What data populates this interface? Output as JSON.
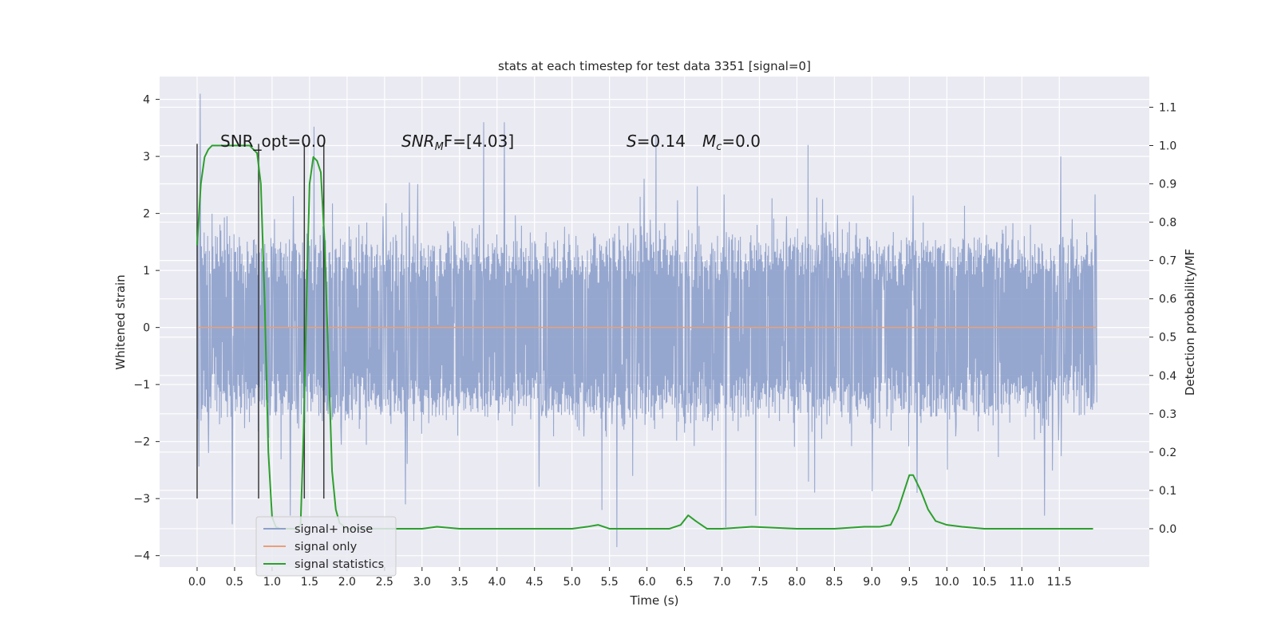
{
  "chart_data": {
    "type": "line",
    "title": "stats at each timestep for test data 3351 [signal=0]",
    "xlabel": "Time (s)",
    "ylabel": "Whitened strain",
    "y2label": "Detection probability/MF",
    "xlim": [
      -0.5,
      12.7
    ],
    "ylim": [
      -4.2,
      4.4
    ],
    "y2lim": [
      -0.1,
      1.18
    ],
    "x_ticks": [
      0.0,
      0.5,
      1.0,
      1.5,
      2.0,
      2.5,
      3.0,
      3.5,
      4.0,
      4.5,
      5.0,
      5.5,
      6.0,
      6.5,
      7.0,
      7.5,
      8.0,
      8.5,
      9.0,
      9.5,
      10.0,
      10.5,
      11.0,
      11.5
    ],
    "x_tick_labels": [
      "0.0",
      "0.5",
      "1.0",
      "1.5",
      "2.0",
      "2.5",
      "3.0",
      "3.5",
      "4.0",
      "4.5",
      "5.0",
      "5.5",
      "6.0",
      "6.5",
      "7.0",
      "7.5",
      "8.0",
      "8.5",
      "9.0",
      "9.5",
      "10.0",
      "10.5",
      "11.0",
      "11.5"
    ],
    "y_ticks": [
      4,
      3,
      2,
      1,
      0,
      -1,
      -2,
      -3,
      -4
    ],
    "y_tick_labels": [
      "4",
      "3",
      "2",
      "1",
      "0",
      "−1",
      "−2",
      "−3",
      "−4"
    ],
    "y2_ticks": [
      1.1,
      1.0,
      0.9,
      0.8,
      0.7,
      0.6,
      0.5,
      0.4,
      0.3,
      0.2,
      0.1,
      0.0
    ],
    "y2_tick_labels": [
      "1.1",
      "1.0",
      "0.9",
      "0.8",
      "0.7",
      "0.6",
      "0.5",
      "0.4",
      "0.3",
      "0.2",
      "0.1",
      "0.0"
    ],
    "grid": true,
    "legend_position": "lower-left",
    "annotations": {
      "snr_opt": "SNR_opt=0.0",
      "snr_mf_main": "SNR",
      "snr_mf_sub": "M",
      "snr_mf_rest": "F=[4.03]",
      "s_main": "S",
      "s_rest": "=0.14",
      "mc_main": "M",
      "mc_sub": "c",
      "mc_rest": "=0.0"
    },
    "vertical_markers_x": [
      0.0,
      0.82,
      1.43,
      1.69
    ],
    "vertical_markers_yrange": [
      -3.0,
      3.22
    ],
    "series": [
      {
        "name": "signal+ noise",
        "color": "#8da0cb",
        "axis": "left",
        "x_range": [
          0.0,
          12.0
        ],
        "n_points": 2048,
        "core_amplitude": 1.38,
        "spike_extrema": [
          {
            "x": 0.04,
            "y": 4.1
          },
          {
            "x": 0.15,
            "y": -2.2
          },
          {
            "x": 0.47,
            "y": -3.45
          },
          {
            "x": 1.56,
            "y": 3.52
          },
          {
            "x": 1.24,
            "y": -3.3
          },
          {
            "x": 2.78,
            "y": -3.1
          },
          {
            "x": 3.82,
            "y": 3.6
          },
          {
            "x": 4.1,
            "y": 3.6
          },
          {
            "x": 5.4,
            "y": -3.2
          },
          {
            "x": 5.6,
            "y": -3.85
          },
          {
            "x": 6.12,
            "y": 3.35
          },
          {
            "x": 7.05,
            "y": -3.5
          },
          {
            "x": 7.45,
            "y": -3.3
          },
          {
            "x": 8.15,
            "y": 3.2
          },
          {
            "x": 9.6,
            "y": -2.9
          },
          {
            "x": 11.3,
            "y": -3.3
          },
          {
            "x": 11.52,
            "y": 3.0
          }
        ]
      },
      {
        "name": "signal only",
        "color": "#e8a07a",
        "axis": "left",
        "x": [
          0.0,
          12.0
        ],
        "y": [
          0.0,
          0.0
        ]
      },
      {
        "name": "signal statistics",
        "color": "#2ca02c",
        "axis": "right",
        "x": [
          0.0,
          0.05,
          0.1,
          0.15,
          0.2,
          0.3,
          0.5,
          0.7,
          0.8,
          0.85,
          0.9,
          0.95,
          1.0,
          1.05,
          1.1,
          1.2,
          1.3,
          1.38,
          1.42,
          1.46,
          1.5,
          1.55,
          1.6,
          1.65,
          1.7,
          1.75,
          1.8,
          1.85,
          1.9,
          2.0,
          2.2,
          2.5,
          3.0,
          3.2,
          3.5,
          4.0,
          4.5,
          5.0,
          5.2,
          5.35,
          5.5,
          6.0,
          6.3,
          6.45,
          6.55,
          6.65,
          6.8,
          7.0,
          7.4,
          8.0,
          8.5,
          8.9,
          9.1,
          9.25,
          9.35,
          9.45,
          9.5,
          9.55,
          9.65,
          9.75,
          9.85,
          10.0,
          10.2,
          10.5,
          11.0,
          11.5,
          11.95
        ],
        "y": [
          0.74,
          0.9,
          0.97,
          0.99,
          1.0,
          1.0,
          1.0,
          1.0,
          0.98,
          0.9,
          0.6,
          0.2,
          0.03,
          0.005,
          0.0,
          0.0,
          0.0,
          0.01,
          0.25,
          0.6,
          0.9,
          0.97,
          0.96,
          0.93,
          0.75,
          0.45,
          0.15,
          0.05,
          0.015,
          0.0,
          0.0,
          0.0,
          0.0,
          0.005,
          0.0,
          0.0,
          0.0,
          0.0,
          0.005,
          0.01,
          0.0,
          0.0,
          0.0,
          0.01,
          0.035,
          0.02,
          0.0,
          0.0,
          0.005,
          0.0,
          0.0,
          0.005,
          0.005,
          0.01,
          0.05,
          0.11,
          0.14,
          0.14,
          0.1,
          0.05,
          0.02,
          0.01,
          0.005,
          0.0,
          0.0,
          0.0,
          0.0
        ]
      }
    ]
  }
}
